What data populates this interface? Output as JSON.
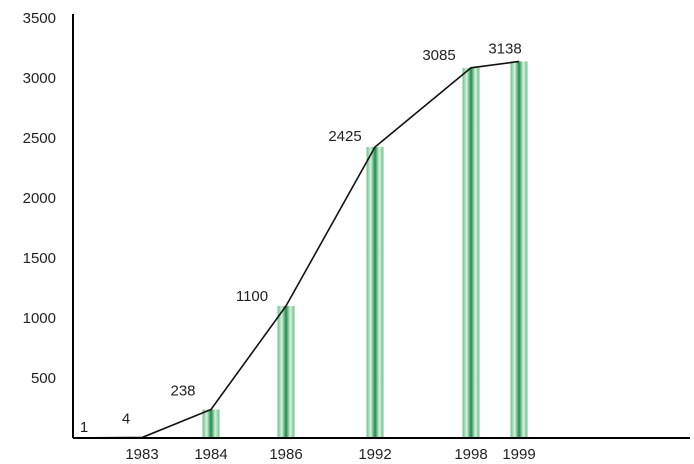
{
  "chart_data": {
    "type": "bar",
    "categories": [
      "1983",
      "1984",
      "1986",
      "1992",
      "1998",
      "1999"
    ],
    "x_ticks": [
      "1983",
      "1984",
      "1986",
      "1992",
      "1998",
      "1999"
    ],
    "values": [
      4,
      238,
      1100,
      2425,
      3085,
      3138
    ],
    "line": {
      "points": [
        {
          "label": "1",
          "value": 1
        },
        {
          "label": "4",
          "value": 4
        },
        {
          "label": "238",
          "value": 238
        },
        {
          "label": "1100",
          "value": 1100
        },
        {
          "label": "2425",
          "value": 2425
        },
        {
          "label": "3085",
          "value": 3085
        },
        {
          "label": "3138",
          "value": 3138
        }
      ]
    },
    "y_ticks": [
      "500",
      "1000",
      "1500",
      "2000",
      "2500",
      "3000",
      "3500"
    ],
    "ylim": [
      0,
      3500
    ],
    "grid": false,
    "title": "",
    "xlabel": "",
    "ylabel": "",
    "colors": {
      "bar_light": "#d6f0dc",
      "bar_mid": "#6cc08a",
      "bar_dark": "#1f8c4a",
      "line": "#111111",
      "axis": "#000000"
    }
  }
}
